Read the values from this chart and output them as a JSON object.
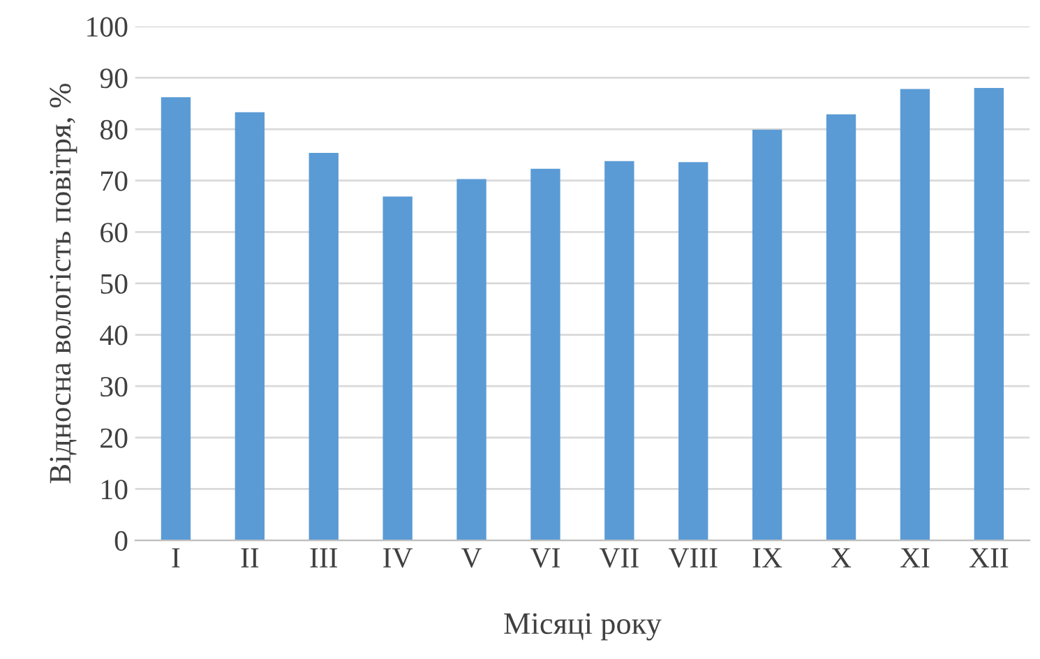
{
  "chart_data": {
    "type": "bar",
    "xlabel": "Місяці року",
    "ylabel": "Відносна вологість повітря, %",
    "categories": [
      "I",
      "II",
      "III",
      "IV",
      "V",
      "VI",
      "VII",
      "VIII",
      "IX",
      "X",
      "XI",
      "XII"
    ],
    "values": [
      86.2,
      83.3,
      75.4,
      66.9,
      70.3,
      72.3,
      73.8,
      73.6,
      79.9,
      82.9,
      87.8,
      88.0
    ],
    "color": "#5b9bd5",
    "ylim": [
      0,
      100
    ],
    "yticks": [
      0,
      10,
      20,
      30,
      40,
      50,
      60,
      70,
      80,
      90,
      100
    ],
    "grid": "y"
  }
}
